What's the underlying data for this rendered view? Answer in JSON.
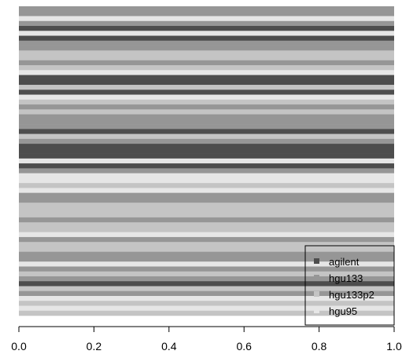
{
  "chart_data": {
    "type": "bar",
    "orientation": "horizontal",
    "xlim": [
      0,
      1
    ],
    "x_ticks": [
      "0.0",
      "0.2",
      "0.4",
      "0.6",
      "0.8",
      "1.0"
    ],
    "legend_placement": "bottom-right",
    "series": [
      {
        "name": "agilent",
        "color": "#4d4d4d"
      },
      {
        "name": "hgu133",
        "color": "#969696"
      },
      {
        "name": "hgu133p2",
        "color": "#c4c4c4"
      },
      {
        "name": "hgu95",
        "color": "#e6e6e6"
      }
    ],
    "bars_top_to_bottom": [
      1,
      1,
      3,
      1,
      0,
      3,
      0,
      1,
      1,
      2,
      2,
      1,
      2,
      3,
      0,
      0,
      2,
      0,
      3,
      2,
      1,
      2,
      1,
      1,
      1,
      0,
      2,
      1,
      0,
      0,
      0,
      3,
      0,
      1,
      3,
      3,
      2,
      3,
      1,
      1,
      2,
      2,
      2,
      1,
      2,
      2,
      3,
      1,
      2,
      2,
      1,
      1,
      3,
      1,
      2,
      1,
      0,
      2,
      1,
      3,
      2,
      3,
      2
    ],
    "bar_values": "all bars span the full range 0.0 to 1.0"
  }
}
